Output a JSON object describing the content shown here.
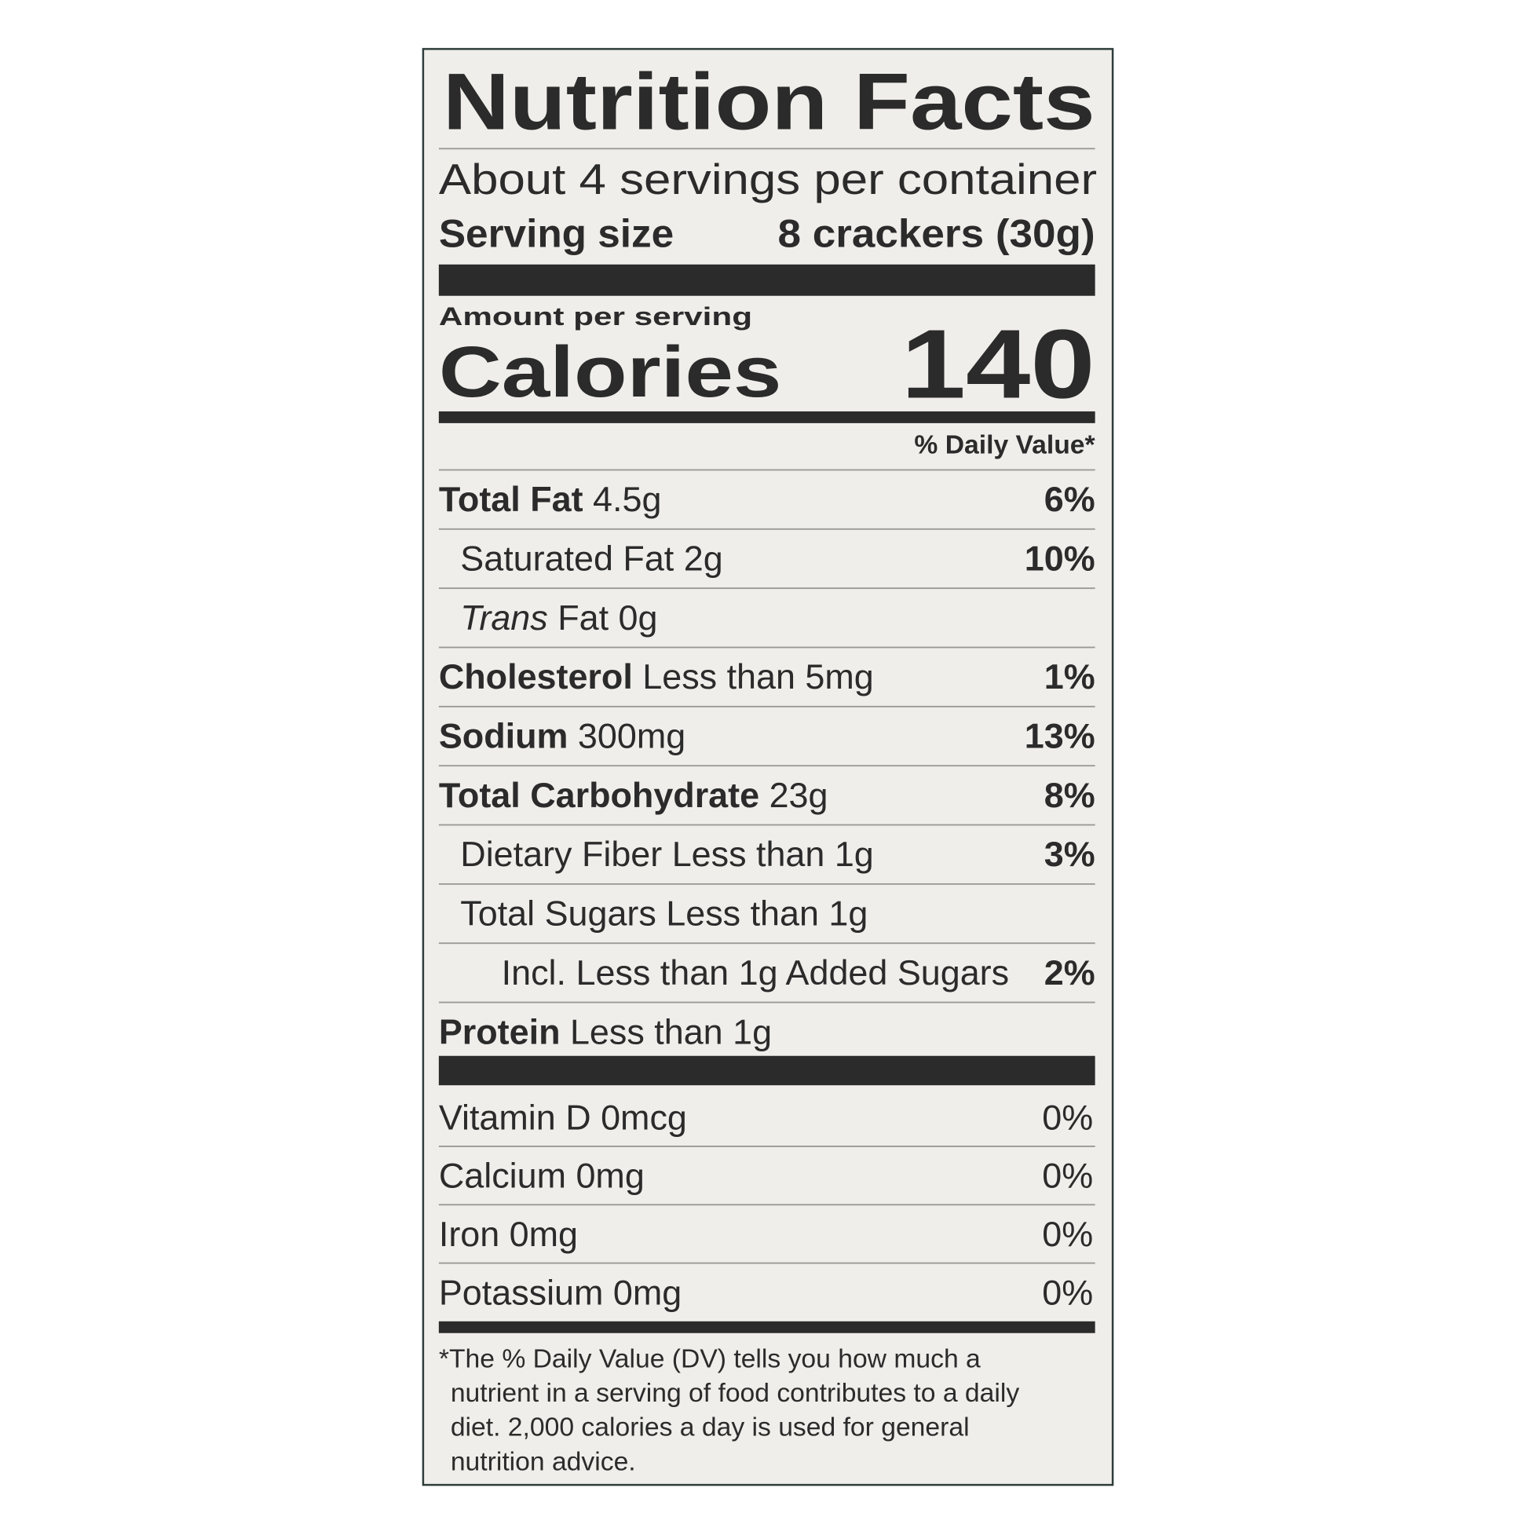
{
  "title": "Nutrition Facts",
  "servings": "About 4 servings per container",
  "serving_size": {
    "label": "Serving size",
    "value": "8 crackers (30g)"
  },
  "amount_per_serving": "Amount per serving",
  "calories": {
    "label": "Calories",
    "value": "140"
  },
  "daily_value_header": "% Daily Value*",
  "nutrients": [
    {
      "name": "Total Fat",
      "amount": "4.5g",
      "dv": "6%"
    },
    {
      "name": "Saturated Fat 2g",
      "dv": "10%"
    },
    {
      "name_italic": "Trans",
      "name": "Fat 0g"
    },
    {
      "name": "Cholesterol",
      "amount": "Less than 5mg",
      "dv": "1%"
    },
    {
      "name": "Sodium",
      "amount": "300mg",
      "dv": "13%"
    },
    {
      "name": "Total Carbohydrate",
      "amount": "23g",
      "dv": "8%"
    },
    {
      "name": "Dietary Fiber Less than 1g",
      "dv": "3%"
    },
    {
      "name": "Total Sugars Less than 1g"
    },
    {
      "name": "Incl. Less than 1g Added Sugars",
      "dv": "2%"
    },
    {
      "name": "Protein",
      "amount": "Less than 1g"
    }
  ],
  "vitamins": [
    {
      "name": "Vitamin D 0mcg",
      "dv": "0%"
    },
    {
      "name": "Calcium 0mg",
      "dv": "0%"
    },
    {
      "name": "Iron 0mg",
      "dv": "0%"
    },
    {
      "name": "Potassium 0mg",
      "dv": "0%"
    }
  ],
  "footnote": [
    "*The % Daily Value (DV) tells you how much a",
    "nutrient in a serving of food contributes to a daily",
    "diet. 2,000 calories a day is used for general",
    "nutrition advice."
  ]
}
